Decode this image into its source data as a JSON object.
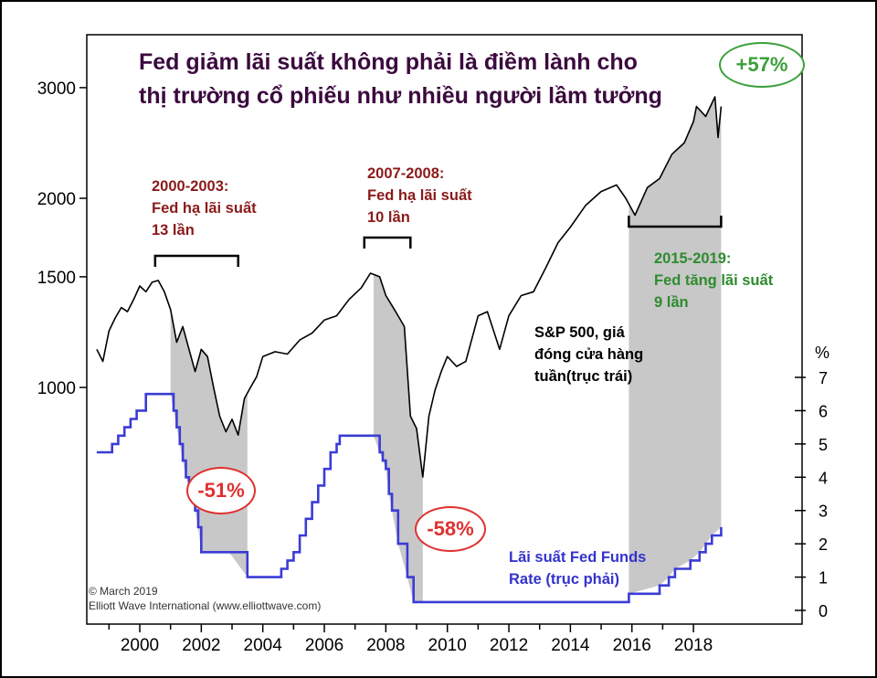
{
  "title": "Fed giảm lãi suất không phải là điềm lành cho thị trường cổ phiếu như nhiều người lầm tưởng",
  "annotations": {
    "cut_2000": [
      "2000-2003:",
      "Fed hạ lãi suất",
      "13 lần"
    ],
    "cut_2007": [
      "2007-2008:",
      "Fed hạ lãi suất",
      "10 lần"
    ],
    "hike_2015": [
      "2015-2019:",
      "Fed tăng lãi suất",
      "9 lần"
    ],
    "sp500_label": [
      "S&P 500, giá",
      "đóng cửa hàng",
      "tuần(trục trái)"
    ],
    "fed_label": [
      "Lãi suất Fed Funds",
      "Rate (trục phải)"
    ],
    "drop_2000": "-51%",
    "drop_2007": "-58%",
    "gain_2015": "+57%",
    "copyright_1": "© March 2019",
    "copyright_2": "Elliott Wave International (www.elliottwave.com)"
  },
  "colors": {
    "sp500": "#000000",
    "fed_rate": "#3b3bd6",
    "shade": "#c8c8c8",
    "drop_badge": "#e03030",
    "gain_badge": "#3aa03a"
  },
  "chart_data": {
    "type": "line",
    "x_range": [
      1998.6,
      2018.9
    ],
    "x_ticks": [
      2000,
      2002,
      2004,
      2006,
      2008,
      2010,
      2012,
      2014,
      2016,
      2018
    ],
    "y_left": {
      "scale": "log",
      "ticks": [
        1000,
        1500,
        2000,
        3000
      ]
    },
    "y_right": {
      "label": "%",
      "ticks": [
        0,
        1,
        2,
        3,
        4,
        5,
        6,
        7
      ],
      "range": [
        0,
        7
      ]
    },
    "shaded_periods": [
      [
        2001.0,
        2003.5
      ],
      [
        2007.6,
        2009.2
      ],
      [
        2015.9,
        2018.9
      ]
    ],
    "series": [
      {
        "name": "S&P 500, giá đóng cửa hàng tuần(trục trái)",
        "axis": "left",
        "x": [
          1998.6,
          1998.8,
          1999.0,
          1999.2,
          1999.4,
          1999.6,
          1999.8,
          2000.0,
          2000.2,
          2000.4,
          2000.6,
          2000.8,
          2001.0,
          2001.2,
          2001.4,
          2001.6,
          2001.8,
          2002.0,
          2002.2,
          2002.4,
          2002.6,
          2002.8,
          2003.0,
          2003.2,
          2003.4,
          2003.6,
          2003.8,
          2004.0,
          2004.4,
          2004.8,
          2005.2,
          2005.6,
          2006.0,
          2006.4,
          2006.8,
          2007.2,
          2007.5,
          2007.8,
          2008.0,
          2008.2,
          2008.4,
          2008.6,
          2008.8,
          2009.0,
          2009.2,
          2009.4,
          2009.6,
          2009.8,
          2010.0,
          2010.3,
          2010.6,
          2011.0,
          2011.3,
          2011.7,
          2012.0,
          2012.4,
          2012.8,
          2013.2,
          2013.6,
          2014.0,
          2014.5,
          2015.0,
          2015.5,
          2015.8,
          2016.1,
          2016.5,
          2016.9,
          2017.3,
          2017.7,
          2018.0,
          2018.1,
          2018.4,
          2018.7,
          2018.8,
          2018.9
        ],
        "values": [
          1150,
          1100,
          1230,
          1290,
          1340,
          1320,
          1380,
          1450,
          1420,
          1470,
          1480,
          1420,
          1330,
          1180,
          1250,
          1150,
          1060,
          1150,
          1120,
          1000,
          900,
          850,
          890,
          840,
          960,
          1000,
          1040,
          1120,
          1140,
          1130,
          1190,
          1220,
          1280,
          1300,
          1380,
          1440,
          1520,
          1500,
          1400,
          1350,
          1300,
          1250,
          900,
          860,
          720,
          900,
          990,
          1060,
          1120,
          1080,
          1100,
          1300,
          1320,
          1150,
          1300,
          1400,
          1420,
          1550,
          1700,
          1800,
          1950,
          2050,
          2100,
          2000,
          1880,
          2080,
          2150,
          2350,
          2450,
          2650,
          2800,
          2700,
          2900,
          2500,
          2800
        ]
      },
      {
        "name": "Lãi suất Fed Funds Rate (trục phải)",
        "axis": "right",
        "x": [
          1998.6,
          1998.9,
          1999.1,
          1999.3,
          1999.5,
          1999.7,
          1999.9,
          2000.2,
          2000.6,
          2001.0,
          2001.1,
          2001.2,
          2001.3,
          2001.4,
          2001.5,
          2001.6,
          2001.7,
          2001.8,
          2001.9,
          2002.0,
          2002.9,
          2003.5,
          2004.4,
          2004.6,
          2004.8,
          2005.0,
          2005.2,
          2005.4,
          2005.6,
          2005.8,
          2006.0,
          2006.2,
          2006.4,
          2006.5,
          2007.6,
          2007.8,
          2007.9,
          2008.0,
          2008.1,
          2008.2,
          2008.4,
          2008.7,
          2008.9,
          2015.9,
          2016.9,
          2017.2,
          2017.4,
          2017.9,
          2018.2,
          2018.4,
          2018.6,
          2018.9
        ],
        "values": [
          4.75,
          4.75,
          5.0,
          5.25,
          5.5,
          5.75,
          6.0,
          6.5,
          6.5,
          6.5,
          6.0,
          5.5,
          5.0,
          4.5,
          4.0,
          3.75,
          3.5,
          3.0,
          2.5,
          1.75,
          1.75,
          1.0,
          1.0,
          1.25,
          1.5,
          1.75,
          2.25,
          2.75,
          3.25,
          3.75,
          4.25,
          4.75,
          5.0,
          5.25,
          5.25,
          4.75,
          4.5,
          4.25,
          3.5,
          3.0,
          2.0,
          1.0,
          0.25,
          0.5,
          0.75,
          1.0,
          1.25,
          1.5,
          1.75,
          2.0,
          2.25,
          2.5
        ]
      }
    ]
  }
}
